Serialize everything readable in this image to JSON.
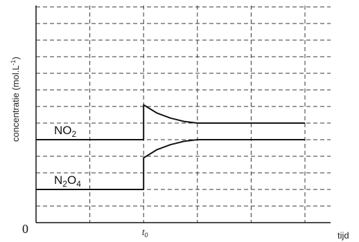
{
  "chart_data": {
    "type": "line",
    "ylabel": "concentratie (mol.L",
    "ylabel_sup": "-1",
    "ylabel_close": ")",
    "xlabel": "tijd",
    "origin_label": "0",
    "x_tick": {
      "label": "t",
      "sub": "0",
      "x": 2
    },
    "xlim": [
      0,
      5
    ],
    "ylim": [
      0,
      13
    ],
    "grid": true,
    "series": [
      {
        "name": "NO2",
        "label_main": "NO",
        "label_sub": "2",
        "x": [
          0,
          2,
          2,
          2.25,
          2.5,
          2.75,
          3,
          5
        ],
        "y": [
          5,
          5,
          7.1,
          6.6,
          6.3,
          6.1,
          6.0,
          6.0
        ]
      },
      {
        "name": "N2O4",
        "label_main": "N",
        "label_sub": "2",
        "label_main2": "O",
        "label_sub2": "4",
        "x": [
          0,
          2,
          2,
          2.25,
          2.5,
          2.75,
          3,
          5
        ],
        "y": [
          2,
          2,
          3.9,
          4.4,
          4.7,
          4.9,
          5.0,
          5.0
        ]
      }
    ]
  }
}
